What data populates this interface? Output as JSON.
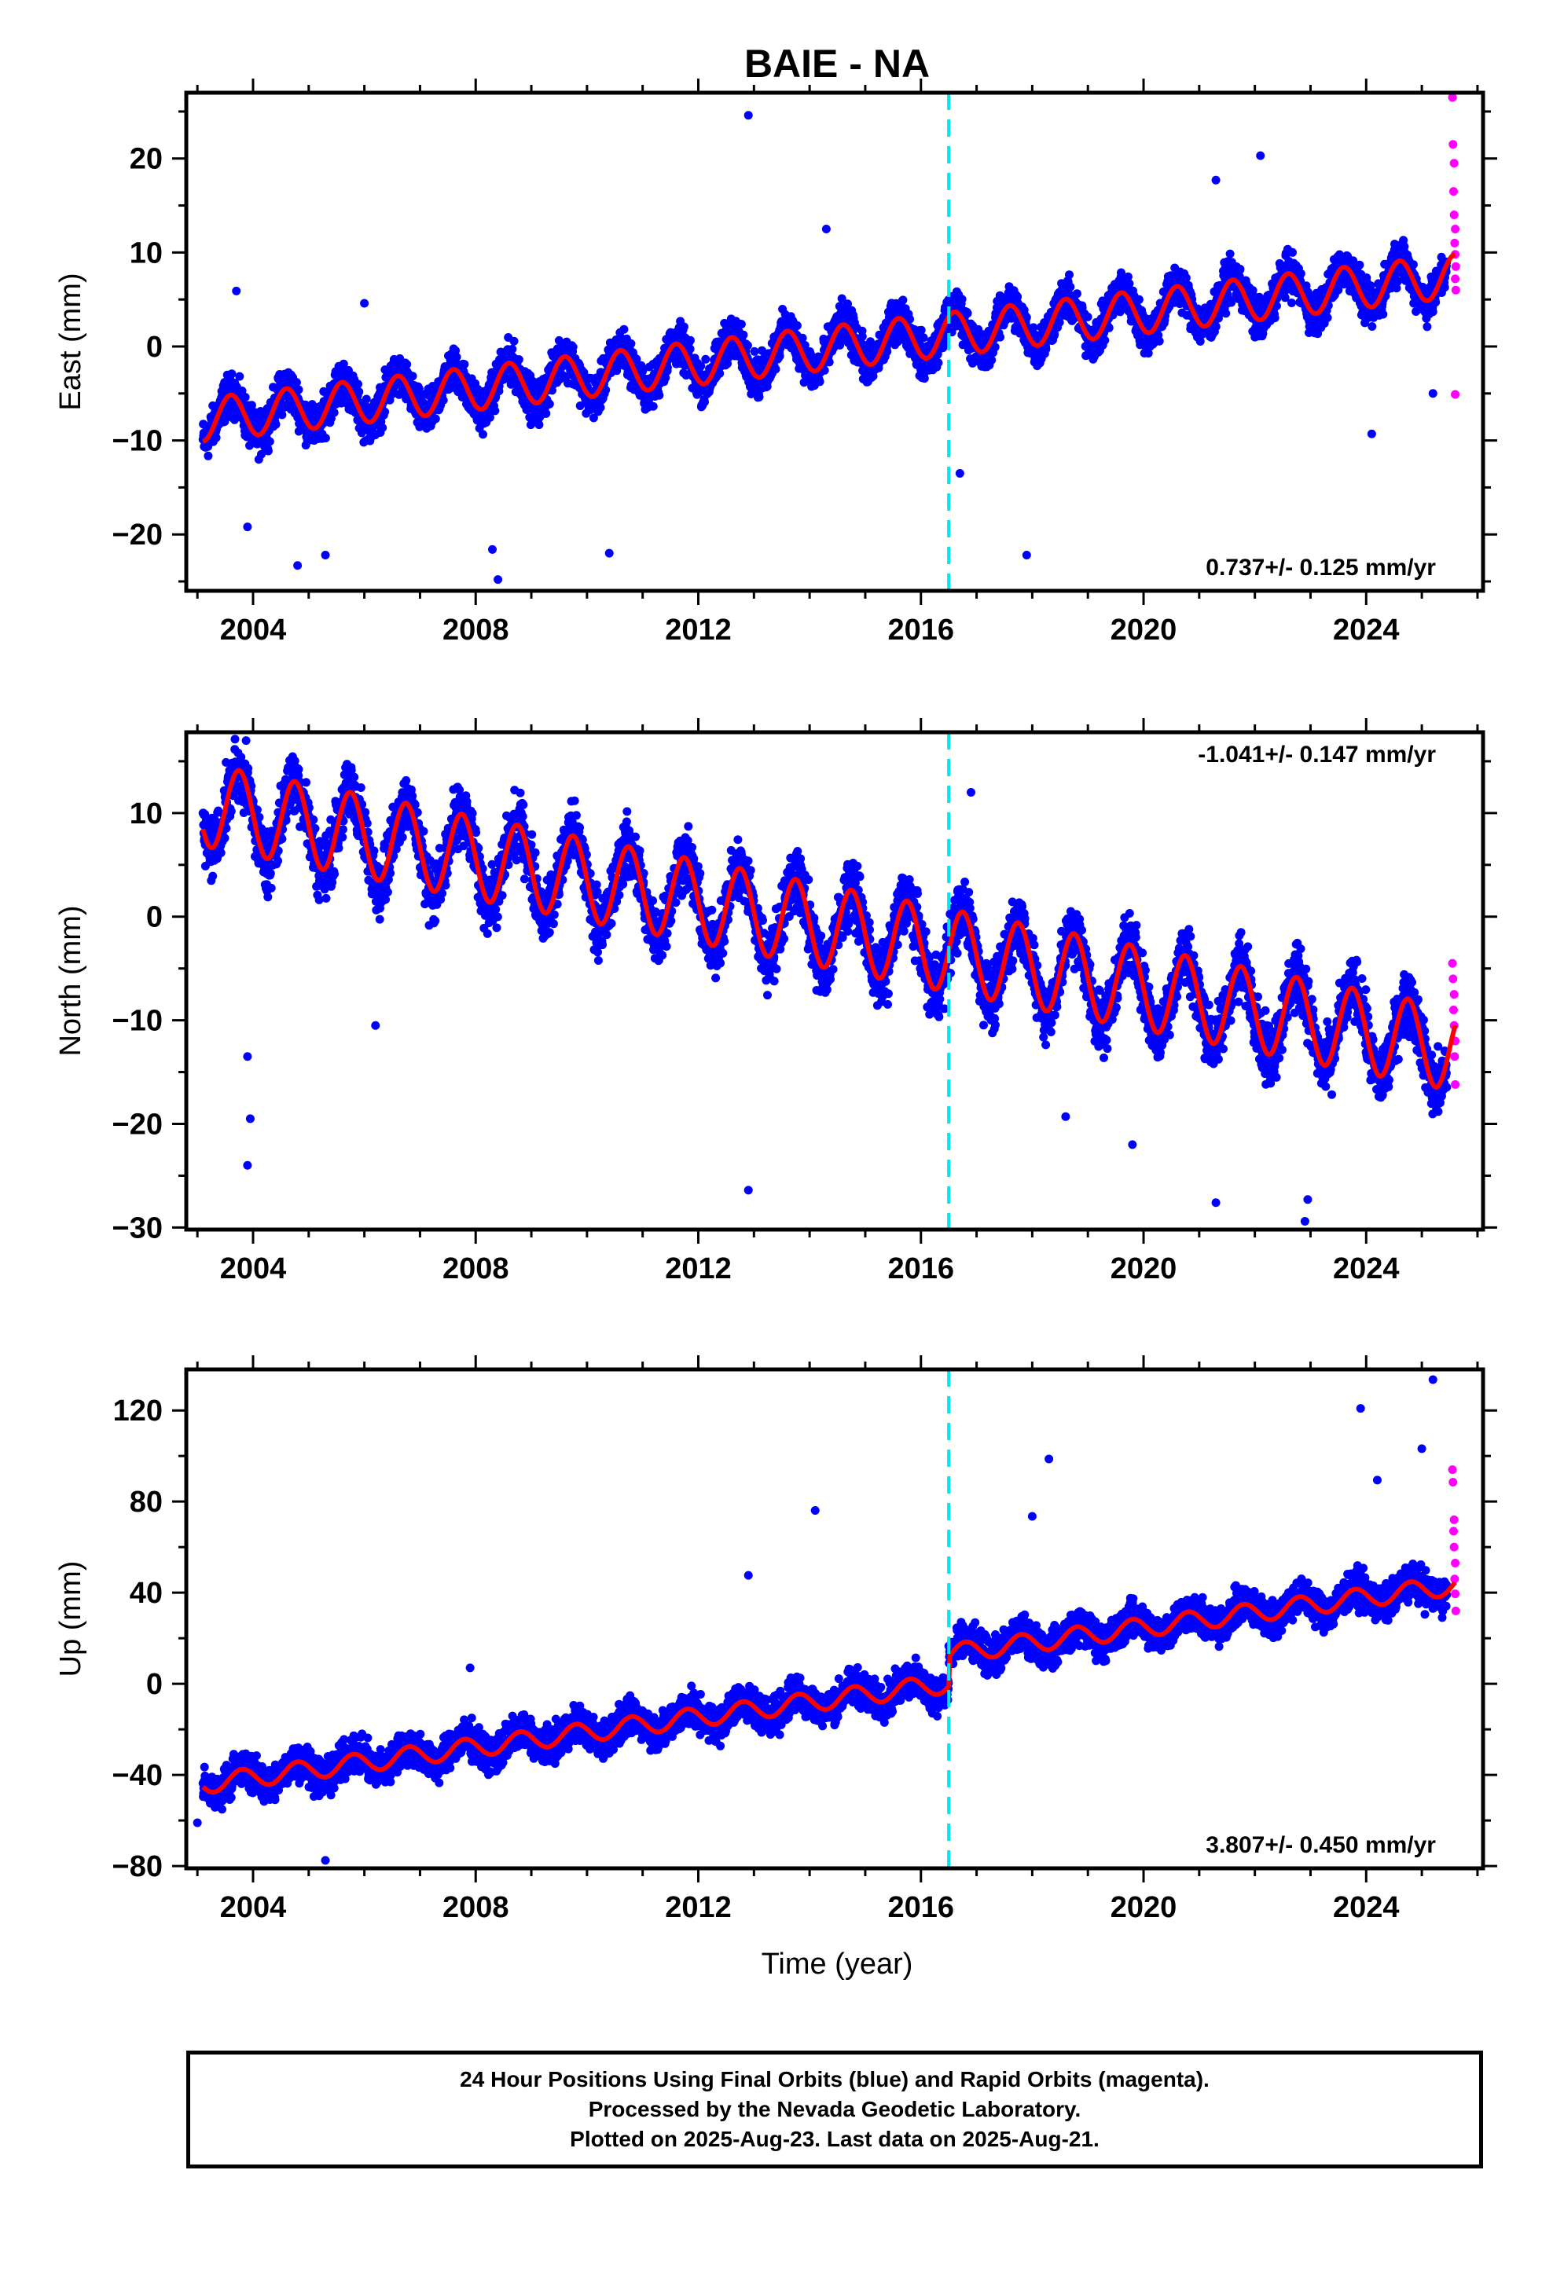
{
  "title": "BAIE - NA",
  "xlabel": "Time (year)",
  "footer": {
    "line1": "24 Hour Positions Using Final Orbits (blue) and Rapid Orbits (magenta).",
    "line2": "Processed by the Nevada Geodetic Laboratory.",
    "line3": "Plotted on 2025-Aug-23. Last data on 2025-Aug-21."
  },
  "colors": {
    "final_orbits": "#0000ff",
    "rapid_orbits": "#ff00ff",
    "model": "#ff0000",
    "equipment_change": "#00e5ee"
  },
  "chart_data": [
    {
      "type": "scatter",
      "name": "East",
      "ylabel": "East (mm)",
      "xlim": [
        2002.8,
        2026.1
      ],
      "ylim": [
        -26,
        27
      ],
      "xticks": [
        2004,
        2008,
        2012,
        2016,
        2020,
        2024
      ],
      "yticks": [
        -20,
        -10,
        0,
        10,
        20
      ],
      "grid": false,
      "rate_label": "0.737+/- 0.125 mm/yr",
      "rate_position": "bottom-right",
      "step_lines": [
        2016.5
      ],
      "model": {
        "start": 2003.1,
        "end": 2025.6,
        "intercept": -7.8,
        "slope": 0.68,
        "amplitude": 2.3,
        "phase_year": 0.35,
        "offsets": [
          {
            "at": 2020.0,
            "step": 0
          }
        ]
      },
      "scatter": {
        "start": 2003.1,
        "end_final": 2025.45,
        "end": 2025.6,
        "spread": 1.8
      },
      "outliers": [
        [
          2012.9,
          24.6
        ],
        [
          2021.3,
          17.7
        ],
        [
          2022.1,
          20.3
        ],
        [
          2014.3,
          12.5
        ],
        [
          2006.0,
          4.6
        ],
        [
          2003.7,
          5.9
        ],
        [
          2008.3,
          -21.6
        ],
        [
          2008.4,
          -24.8
        ],
        [
          2004.8,
          -23.3
        ],
        [
          2005.3,
          -22.2
        ],
        [
          2010.4,
          -22.0
        ],
        [
          2017.9,
          -22.2
        ],
        [
          2024.1,
          -9.3
        ],
        [
          2025.2,
          -5.0
        ],
        [
          2016.7,
          -13.5
        ],
        [
          2003.9,
          -19.2
        ]
      ],
      "rapid_points": [
        [
          2025.55,
          26.5
        ],
        [
          2025.56,
          21.5
        ],
        [
          2025.58,
          19.5
        ],
        [
          2025.57,
          16.5
        ],
        [
          2025.58,
          14.0
        ],
        [
          2025.6,
          12.5
        ],
        [
          2025.59,
          11.0
        ],
        [
          2025.6,
          9.8
        ],
        [
          2025.61,
          8.5
        ],
        [
          2025.6,
          7.2
        ],
        [
          2025.61,
          6.0
        ],
        [
          2025.6,
          -5.1
        ]
      ]
    },
    {
      "type": "scatter",
      "name": "North",
      "ylabel": "North (mm)",
      "xlim": [
        2002.8,
        2026.1
      ],
      "ylim": [
        -30.2,
        17.8
      ],
      "xticks": [
        2004,
        2008,
        2012,
        2016,
        2020,
        2024
      ],
      "yticks": [
        -30,
        -20,
        -10,
        0,
        10
      ],
      "grid": false,
      "rate_label": "-1.041+/- 0.147 mm/yr",
      "rate_position": "top-right",
      "step_lines": [
        2016.5
      ],
      "model": {
        "start": 2003.1,
        "end": 2025.6,
        "intercept": 10.8,
        "slope": -1.05,
        "amplitude": 4.0,
        "phase_year": 0.5,
        "offsets": []
      },
      "scatter": {
        "start": 2003.1,
        "end_final": 2025.45,
        "end": 2025.6,
        "spread": 2.4
      },
      "outliers": [
        [
          2003.9,
          -24.0
        ],
        [
          2003.95,
          -19.5
        ],
        [
          2003.9,
          -13.5
        ],
        [
          2006.2,
          -10.5
        ],
        [
          2012.9,
          -26.4
        ],
        [
          2016.9,
          12.0
        ],
        [
          2021.3,
          -27.6
        ],
        [
          2022.9,
          -29.4
        ],
        [
          2022.95,
          -27.3
        ],
        [
          2018.6,
          -19.3
        ],
        [
          2019.8,
          -22.0
        ]
      ],
      "rapid_points": [
        [
          2025.55,
          -4.5
        ],
        [
          2025.56,
          -6.0
        ],
        [
          2025.58,
          -7.5
        ],
        [
          2025.57,
          -9.0
        ],
        [
          2025.58,
          -10.5
        ],
        [
          2025.6,
          -12.0
        ],
        [
          2025.59,
          -13.5
        ],
        [
          2025.6,
          -16.2
        ]
      ]
    },
    {
      "type": "scatter",
      "name": "Up",
      "ylabel": "Up (mm)",
      "xlim": [
        2002.8,
        2026.1
      ],
      "ylim": [
        -81,
        138
      ],
      "xticks": [
        2004,
        2008,
        2012,
        2016,
        2020,
        2024
      ],
      "yticks": [
        -80,
        -40,
        0,
        40,
        80,
        120
      ],
      "grid": false,
      "rate_label": "3.807+/- 0.450 mm/yr",
      "rate_position": "bottom-right",
      "step_lines": [
        2016.5
      ],
      "model": {
        "start": 2003.1,
        "end": 2025.6,
        "intercept": -44.0,
        "slope": 3.3,
        "amplitude": 4.2,
        "phase_year": 0.55,
        "offsets": [
          {
            "at": 2016.5,
            "step": 13
          }
        ]
      },
      "scatter": {
        "start": 2003.1,
        "end_final": 2025.45,
        "end": 2025.6,
        "spread": 6.5
      },
      "outliers": [
        [
          2012.9,
          47.6
        ],
        [
          2014.1,
          76.1
        ],
        [
          2018.0,
          73.5
        ],
        [
          2018.3,
          98.7
        ],
        [
          2023.9,
          120.9
        ],
        [
          2024.2,
          89.4
        ],
        [
          2025.2,
          133.5
        ],
        [
          2025.0,
          103.2
        ],
        [
          2005.3,
          -77.5
        ],
        [
          2007.9,
          7.0
        ],
        [
          2003.0,
          -61.0
        ]
      ],
      "rapid_points": [
        [
          2025.55,
          94.0
        ],
        [
          2025.56,
          88.5
        ],
        [
          2025.58,
          72.0
        ],
        [
          2025.57,
          67.0
        ],
        [
          2025.58,
          60.0
        ],
        [
          2025.6,
          53.0
        ],
        [
          2025.59,
          46.0
        ],
        [
          2025.6,
          39.5
        ],
        [
          2025.61,
          32.0
        ]
      ]
    }
  ]
}
